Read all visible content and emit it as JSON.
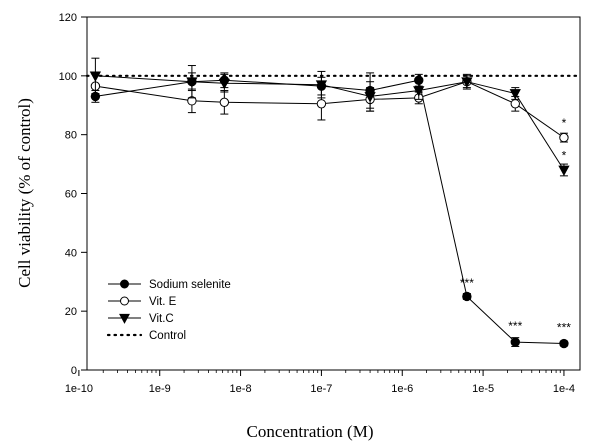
{
  "chart_data": {
    "type": "line",
    "xlabel": "Concentration (M)",
    "ylabel": "Cell viability (% of control)",
    "xscale": "log",
    "xlim": [
      1.26e-10,
      0.000158
    ],
    "ylim": [
      0,
      120
    ],
    "x_ticks": [
      1e-10,
      1e-09,
      1e-08,
      1e-07,
      1e-06,
      1e-05,
      0.0001
    ],
    "x_tick_labels": [
      "1e-10",
      "1e-9",
      "1e-8",
      "1e-7",
      "1e-6",
      "1e-5",
      "1e-4"
    ],
    "y_ticks": [
      0,
      20,
      40,
      60,
      80,
      100,
      120
    ],
    "y_tick_labels": [
      "0",
      "20",
      "40",
      "60",
      "80",
      "100",
      "120"
    ],
    "grid": false,
    "legend_position": "bottom-left",
    "series": [
      {
        "name": "Sodium selenite",
        "marker": "filled-circle",
        "line": "solid",
        "color": "#000000",
        "points": [
          {
            "x": 1.6e-10,
            "y": 93,
            "err": 2
          },
          {
            "x": 2.5e-09,
            "y": 98,
            "err": 3
          },
          {
            "x": 6.3e-09,
            "y": 98.5,
            "err": 2.5
          },
          {
            "x": 1e-07,
            "y": 96.5,
            "err": 3
          },
          {
            "x": 4e-07,
            "y": 95,
            "err": 6
          },
          {
            "x": 1.6e-06,
            "y": 98.5,
            "err": 2
          },
          {
            "x": 6.3e-06,
            "y": 25,
            "err": 1
          },
          {
            "x": 2.5e-05,
            "y": 9.5,
            "err": 1.5
          },
          {
            "x": 0.0001,
            "y": 9,
            "err": 0.8
          }
        ]
      },
      {
        "name": "Vit. E",
        "marker": "open-circle",
        "line": "solid",
        "color": "#000000",
        "points": [
          {
            "x": 1.6e-10,
            "y": 96.5,
            "err": 4
          },
          {
            "x": 2.5e-09,
            "y": 91.5,
            "err": 4
          },
          {
            "x": 6.3e-09,
            "y": 91,
            "err": 4
          },
          {
            "x": 1e-07,
            "y": 90.5,
            "err": 5.5
          },
          {
            "x": 4e-07,
            "y": 92,
            "err": 4
          },
          {
            "x": 1.6e-06,
            "y": 92.5,
            "err": 2
          },
          {
            "x": 6.3e-06,
            "y": 98,
            "err": 2
          },
          {
            "x": 2.5e-05,
            "y": 90.5,
            "err": 2.5
          },
          {
            "x": 0.0001,
            "y": 79,
            "err": 1.5
          }
        ]
      },
      {
        "name": "Vit.C",
        "marker": "filled-triangle-down",
        "line": "solid",
        "color": "#000000",
        "points": [
          {
            "x": 1.6e-10,
            "y": 100,
            "err": 6
          },
          {
            "x": 2.5e-09,
            "y": 98,
            "err": 5.5
          },
          {
            "x": 6.3e-09,
            "y": 97.5,
            "err": 3
          },
          {
            "x": 1e-07,
            "y": 97,
            "err": 4.5
          },
          {
            "x": 4e-07,
            "y": 93,
            "err": 5
          },
          {
            "x": 1.6e-06,
            "y": 95,
            "err": 3
          },
          {
            "x": 6.3e-06,
            "y": 98,
            "err": 2.5
          },
          {
            "x": 2.5e-05,
            "y": 94,
            "err": 2
          },
          {
            "x": 0.0001,
            "y": 68,
            "err": 2
          }
        ]
      },
      {
        "name": "Control",
        "line": "dotted",
        "color": "#000000",
        "points": [
          {
            "x": 1.26e-10,
            "y": 100
          },
          {
            "x": 0.000158,
            "y": 100
          }
        ]
      }
    ],
    "annotations": [
      {
        "text": "***",
        "x": 6.3e-06,
        "y": 29.5
      },
      {
        "text": "***",
        "x": 2.5e-05,
        "y": 15
      },
      {
        "text": "***",
        "x": 0.0001,
        "y": 14.5
      },
      {
        "text": "*",
        "x": 0.0001,
        "y": 84
      },
      {
        "text": "*",
        "x": 0.0001,
        "y": 73
      }
    ]
  }
}
